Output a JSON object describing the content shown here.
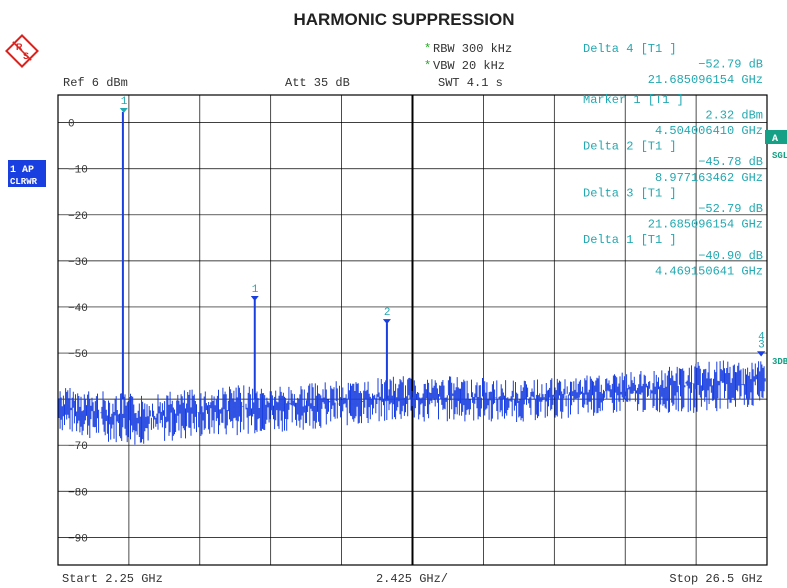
{
  "title": "HARMONIC SUPPRESSION",
  "header": {
    "rbw": "RBW 300 kHz",
    "vbw": "VBW 20 kHz",
    "swt": "SWT 4.1 s",
    "star_mark": "*",
    "ref": "Ref  6 dBm",
    "att": "Att  35 dB"
  },
  "readouts": [
    "Delta 4 [T1 ]",
    "−52.79 dB",
    "21.685096154 GHz",
    "Marker 1 [T1 ]",
    "2.32 dBm",
    "4.504006410 GHz",
    "Delta 2 [T1 ]",
    "−45.78 dB",
    "8.977163462 GHz",
    "Delta 3 [T1 ]",
    "−52.79 dB",
    "21.685096154 GHz",
    "Delta 1 [T1 ]",
    "−40.90 dB",
    "4.469150641 GHz"
  ],
  "side": {
    "trace_label_1": "1 AP",
    "trace_label_2": "CLRWR",
    "right_a": "A",
    "right_sgl": "SGL",
    "right_3db": "3DB"
  },
  "footer": {
    "start": "Start  2.25 GHz",
    "span": "2.425 GHz/",
    "stop": "Stop  26.5 GHz"
  },
  "colors": {
    "trace": "#1a3fe0",
    "readout": "#22a8b0",
    "grid": "#000000",
    "star": "#22aa22",
    "badge": "#1a3fe0",
    "right_badge": "#16a085"
  },
  "chart_data": {
    "type": "line",
    "xlim": [
      2.25,
      26.5
    ],
    "ylim": [
      -96,
      6
    ],
    "ytick_labels": [
      "0",
      "−10",
      "−20",
      "−30",
      "−40",
      "−50",
      "−70",
      "−80",
      "−90"
    ],
    "ytick_values": [
      0,
      -10,
      -20,
      -30,
      -40,
      -50,
      -70,
      -80,
      -90
    ],
    "noise_floor": {
      "x": [
        2.25,
        3.5,
        5.0,
        8.0,
        10.0,
        12.0,
        14.0,
        16.0,
        18.0,
        20.0,
        22.0,
        24.0,
        26.5
      ],
      "upper": [
        -57,
        -58,
        -59,
        -57,
        -57,
        -56,
        -55,
        -55,
        -56,
        -55,
        -54,
        -52,
        -51
      ],
      "lower": [
        -67,
        -69,
        -70,
        -68,
        -67,
        -66,
        -65,
        -65,
        -65,
        -64,
        -63,
        -63,
        -62
      ]
    },
    "peaks": [
      {
        "x": 4.47,
        "y": 2.3
      },
      {
        "x": 8.98,
        "y": -38.5
      },
      {
        "x": 13.5,
        "y": -43.5
      }
    ],
    "markers": [
      {
        "label": "1",
        "x": 4.5,
        "y": 2.32
      },
      {
        "label": "1",
        "x": 8.98,
        "y": -38.5
      },
      {
        "label": "2",
        "x": 13.5,
        "y": -43.5
      },
      {
        "label": "3",
        "x": 26.3,
        "y": -50.5
      },
      {
        "label": "4",
        "x": 26.3,
        "y": -50.5
      }
    ]
  }
}
